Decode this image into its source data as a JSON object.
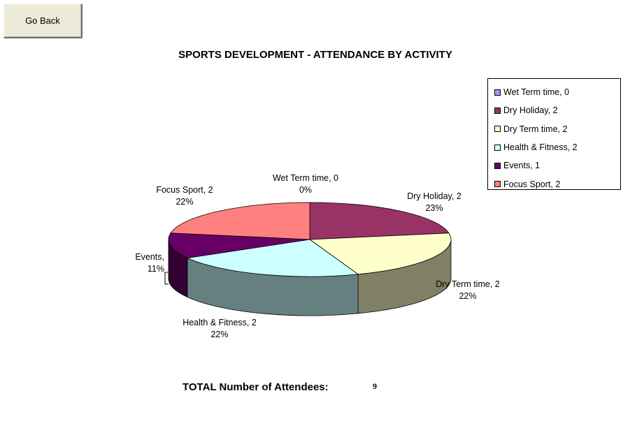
{
  "nav": {
    "go_back_label": "Go Back"
  },
  "chart_data": {
    "type": "pie",
    "title": "SPORTS DEVELOPMENT -  ATTENDANCE BY ACTIVITY",
    "legend_position": "top-right",
    "slices": [
      {
        "label": "Wet Term time, 0",
        "value": 0,
        "percent": "0%",
        "color": "#9999ff"
      },
      {
        "label": "Dry Holiday, 2",
        "value": 2,
        "percent": "23%",
        "color": "#993366"
      },
      {
        "label": "Dry Term time, 2",
        "value": 2,
        "percent": "22%",
        "color": "#ffffcc"
      },
      {
        "label": "Health & Fitness, 2",
        "value": 2,
        "percent": "22%",
        "color": "#ccffff"
      },
      {
        "label": "Events, 1",
        "value": 1,
        "percent": "11%",
        "color": "#660066"
      },
      {
        "label": "Focus Sport, 2",
        "value": 2,
        "percent": "22%",
        "color": "#ff8080"
      }
    ],
    "data_labels": [
      {
        "name": "Wet Term time, 0",
        "percent": "0%"
      },
      {
        "name": "Dry Holiday, 2",
        "percent": "23%"
      },
      {
        "name": "Dry Term time, 2",
        "percent": "22%"
      },
      {
        "name": "Health & Fitness, 2",
        "percent": "22%"
      },
      {
        "name": "Events,",
        "percent": "11%"
      },
      {
        "name": "Focus Sport, 2",
        "percent": "22%"
      }
    ]
  },
  "summary": {
    "total_label": "TOTAL Number of Attendees:",
    "total_value": "9"
  }
}
